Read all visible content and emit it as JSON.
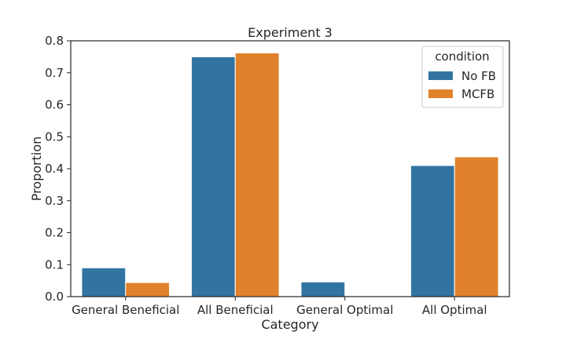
{
  "chart_data": {
    "type": "bar",
    "title": "Experiment 3",
    "xlabel": "Category",
    "ylabel": "Proportion",
    "ylim": [
      0,
      0.8
    ],
    "yticks": [
      "0.0",
      "0.1",
      "0.2",
      "0.3",
      "0.4",
      "0.5",
      "0.6",
      "0.7",
      "0.8"
    ],
    "categories": [
      "General Beneficial",
      "All Beneficial",
      "General Optimal",
      "All Optimal"
    ],
    "series": [
      {
        "name": "No FB",
        "color": "#3274a1",
        "values": [
          0.09,
          0.75,
          0.046,
          0.41
        ]
      },
      {
        "name": "MCFB",
        "color": "#e1812c",
        "values": [
          0.044,
          0.762,
          0.0,
          0.437
        ]
      }
    ],
    "legend": {
      "title": "condition",
      "placement": "top-right"
    },
    "grid": false
  }
}
